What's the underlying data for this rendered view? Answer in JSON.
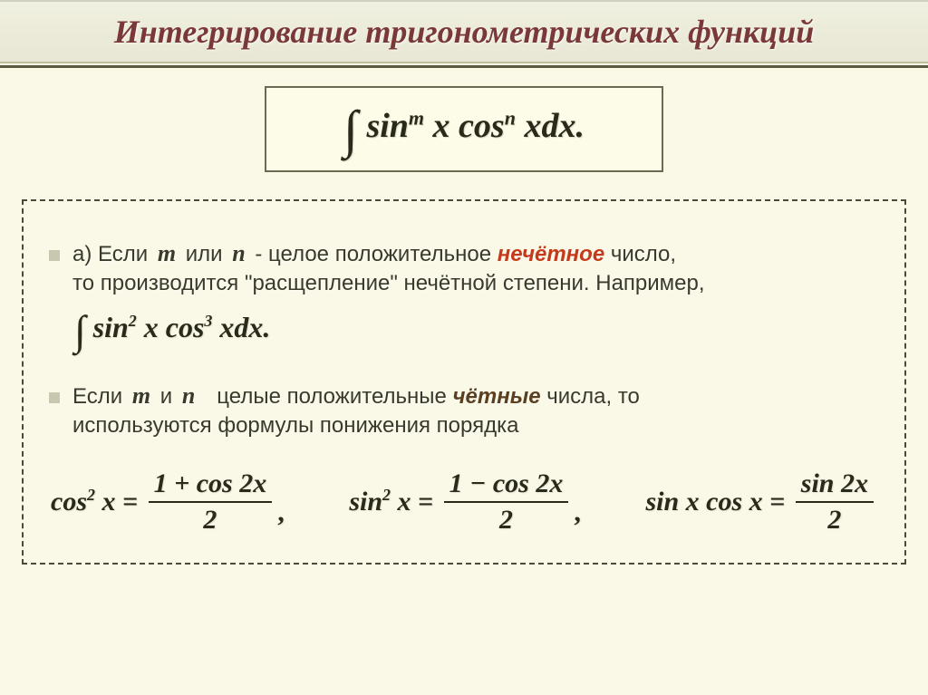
{
  "title": "Интегрирование тригонометрических функций",
  "main_formula": {
    "text": "∫ sinᵐ x cosⁿ x dx.",
    "sin": "sin",
    "cos": "cos",
    "var": "x",
    "diff": "xdx",
    "m": "m",
    "n": "n",
    "dot": "."
  },
  "rule_a": {
    "prefix": "а) Если",
    "m": "m",
    "or": "или",
    "n": "n",
    "mid": "- целое положительное",
    "highlight": "нечётное",
    "suffix1": "число,",
    "suffix2": "то производится \"расщепление\" нечётной степени. Например,"
  },
  "example": {
    "sin": "sin",
    "cos": "cos",
    "exp1": "2",
    "exp2": "3",
    "var": "x",
    "diff": "xdx",
    "dot": "."
  },
  "rule_b": {
    "prefix": "Если",
    "m": "m",
    "and": "и",
    "n": "n",
    "mid": "целые положительные",
    "highlight": "чётные",
    "suffix1": "числа, то",
    "suffix2": "используются формулы понижения порядка"
  },
  "reduction": {
    "f1_left": "cos² x =",
    "f1_top": "1 + cos 2x",
    "f1_bot": "2",
    "f2_left": "sin² x =",
    "f2_top": "1 − cos 2x",
    "f2_bot": "2",
    "f3_left": "sin x cos x =",
    "f3_top": "sin 2x",
    "f3_bot": "2",
    "comma": ","
  },
  "colors": {
    "bg": "#faf9e8",
    "title": "#7a3838",
    "highlight_odd": "#c43a1a",
    "highlight_even": "#5a4020",
    "border": "#6a6a50",
    "text": "#3a3a2a"
  },
  "fonts": {
    "title_size": 36,
    "body_size": 24,
    "formula_size": 38,
    "reduction_size": 30
  }
}
